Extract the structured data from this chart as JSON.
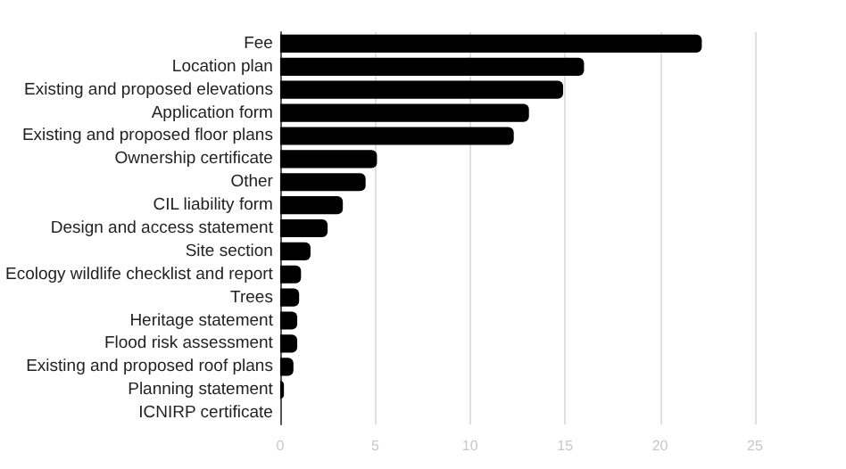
{
  "chart_data": {
    "type": "bar",
    "orientation": "horizontal",
    "categories": [
      "Fee",
      "Location plan",
      "Existing and proposed elevations",
      "Application form",
      "Existing and proposed floor plans",
      "Ownership certificate",
      "Other",
      "CIL liability form",
      "Design and access statement",
      "Site section",
      "Ecology wildlife checklist and report",
      "Trees",
      "Heritage statement",
      "Flood risk assessment",
      "Existing and proposed roof plans",
      "Planning statement",
      "ICNIRP certificate"
    ],
    "values": [
      22.2,
      16,
      14.9,
      13.1,
      12.3,
      5.1,
      4.5,
      3.3,
      2.5,
      1.6,
      1.1,
      1,
      0.9,
      0.9,
      0.7,
      0.2,
      0
    ],
    "color": "#000000",
    "xlim": [
      0,
      25
    ],
    "xticks": [
      0,
      5,
      10,
      15,
      20,
      25
    ],
    "grid": "x"
  }
}
